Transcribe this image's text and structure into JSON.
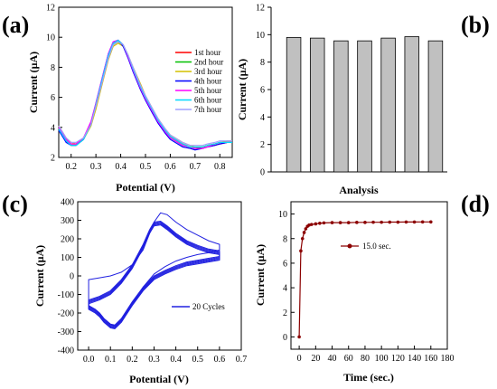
{
  "chart_data": [
    {
      "panel": "(a)",
      "type": "line",
      "xlabel": "Potential (V)",
      "ylabel": "Current (µA)",
      "xlim": [
        0.15,
        0.85
      ],
      "ylim": [
        2,
        12
      ],
      "xticks": [
        "0.2",
        "0.3",
        "0.4",
        "0.5",
        "0.6",
        "0.7",
        "0.8"
      ],
      "yticks": [
        "2",
        "4",
        "6",
        "8",
        "10",
        "12"
      ],
      "legend_position": "right",
      "series": [
        {
          "name": "1st hour",
          "color": "#ff0000",
          "x": [
            0.15,
            0.18,
            0.2,
            0.22,
            0.25,
            0.28,
            0.3,
            0.33,
            0.35,
            0.37,
            0.39,
            0.41,
            0.43,
            0.45,
            0.48,
            0.5,
            0.53,
            0.55,
            0.58,
            0.6,
            0.63,
            0.65,
            0.68,
            0.7,
            0.73,
            0.75,
            0.78,
            0.8,
            0.83,
            0.85
          ],
          "y": [
            4.0,
            3.2,
            2.9,
            2.9,
            3.3,
            4.3,
            5.5,
            7.5,
            8.8,
            9.6,
            9.8,
            9.5,
            8.8,
            7.9,
            6.7,
            6.0,
            5.1,
            4.5,
            3.8,
            3.4,
            3.1,
            2.9,
            2.7,
            2.6,
            2.6,
            2.7,
            2.8,
            2.9,
            3.0,
            3.0
          ]
        },
        {
          "name": "2nd hour",
          "color": "#00c000",
          "x": [
            0.15,
            0.18,
            0.2,
            0.22,
            0.25,
            0.28,
            0.3,
            0.33,
            0.35,
            0.37,
            0.39,
            0.41,
            0.43,
            0.45,
            0.48,
            0.5,
            0.53,
            0.55,
            0.58,
            0.6,
            0.63,
            0.65,
            0.68,
            0.7,
            0.73,
            0.75,
            0.78,
            0.8,
            0.83,
            0.85
          ],
          "y": [
            3.9,
            3.1,
            2.8,
            2.8,
            3.2,
            4.2,
            5.4,
            7.4,
            8.7,
            9.5,
            9.7,
            9.4,
            8.7,
            7.8,
            6.6,
            5.9,
            5.0,
            4.4,
            3.7,
            3.3,
            3.0,
            2.8,
            2.7,
            2.6,
            2.7,
            2.8,
            2.9,
            3.0,
            3.0,
            3.0
          ]
        },
        {
          "name": "3rd hour",
          "color": "#d4c000",
          "x": [
            0.15,
            0.18,
            0.2,
            0.22,
            0.25,
            0.28,
            0.3,
            0.33,
            0.35,
            0.37,
            0.39,
            0.41,
            0.43,
            0.45,
            0.48,
            0.5,
            0.53,
            0.55,
            0.58,
            0.6,
            0.63,
            0.65,
            0.68,
            0.7,
            0.73,
            0.75,
            0.78,
            0.8,
            0.83,
            0.85
          ],
          "y": [
            4.1,
            3.3,
            3.0,
            2.9,
            3.2,
            4.1,
            5.2,
            7.2,
            8.5,
            9.4,
            9.6,
            9.4,
            8.8,
            8.0,
            6.9,
            6.1,
            5.2,
            4.6,
            3.9,
            3.5,
            3.2,
            3.0,
            2.8,
            2.7,
            2.7,
            2.8,
            2.9,
            3.0,
            3.1,
            3.1
          ]
        },
        {
          "name": "4th hour",
          "color": "#0000ff",
          "x": [
            0.15,
            0.18,
            0.2,
            0.22,
            0.25,
            0.28,
            0.3,
            0.33,
            0.35,
            0.37,
            0.39,
            0.41,
            0.43,
            0.45,
            0.48,
            0.5,
            0.53,
            0.55,
            0.58,
            0.6,
            0.63,
            0.65,
            0.68,
            0.7,
            0.73,
            0.75,
            0.78,
            0.8,
            0.83,
            0.85
          ],
          "y": [
            3.8,
            3.0,
            2.8,
            2.8,
            3.2,
            4.3,
            5.6,
            7.6,
            8.9,
            9.7,
            9.8,
            9.4,
            8.6,
            7.7,
            6.5,
            5.8,
            4.9,
            4.3,
            3.6,
            3.2,
            2.9,
            2.7,
            2.6,
            2.5,
            2.6,
            2.7,
            2.8,
            2.9,
            3.0,
            3.0
          ]
        },
        {
          "name": "5th hour",
          "color": "#ff00ff",
          "x": [
            0.15,
            0.18,
            0.2,
            0.22,
            0.25,
            0.28,
            0.3,
            0.33,
            0.35,
            0.37,
            0.39,
            0.41,
            0.43,
            0.45,
            0.48,
            0.5,
            0.53,
            0.55,
            0.58,
            0.6,
            0.63,
            0.65,
            0.68,
            0.7,
            0.73,
            0.75,
            0.78,
            0.8,
            0.83,
            0.85
          ],
          "y": [
            4.0,
            3.2,
            2.9,
            2.9,
            3.3,
            4.4,
            5.6,
            7.6,
            8.9,
            9.7,
            9.8,
            9.5,
            8.7,
            7.8,
            6.6,
            5.9,
            5.0,
            4.4,
            3.7,
            3.3,
            3.0,
            2.8,
            2.7,
            2.6,
            2.6,
            2.7,
            2.9,
            3.0,
            3.0,
            3.0
          ]
        },
        {
          "name": "6th hour",
          "color": "#00d8ff",
          "x": [
            0.15,
            0.18,
            0.2,
            0.22,
            0.25,
            0.28,
            0.3,
            0.33,
            0.35,
            0.37,
            0.39,
            0.41,
            0.43,
            0.45,
            0.48,
            0.5,
            0.53,
            0.55,
            0.58,
            0.6,
            0.63,
            0.65,
            0.68,
            0.7,
            0.73,
            0.75,
            0.78,
            0.8,
            0.83,
            0.85
          ],
          "y": [
            3.9,
            3.1,
            2.8,
            2.8,
            3.2,
            4.2,
            5.5,
            7.5,
            8.8,
            9.6,
            9.8,
            9.5,
            8.8,
            7.9,
            6.7,
            6.0,
            5.1,
            4.5,
            3.8,
            3.4,
            3.1,
            2.9,
            2.7,
            2.7,
            2.7,
            2.8,
            2.9,
            3.0,
            3.0,
            3.0
          ]
        },
        {
          "name": "7th hour",
          "color": "#a0a0ff",
          "x": [
            0.15,
            0.18,
            0.2,
            0.22,
            0.25,
            0.28,
            0.3,
            0.33,
            0.35,
            0.37,
            0.39,
            0.41,
            0.43,
            0.45,
            0.48,
            0.5,
            0.53,
            0.55,
            0.58,
            0.6,
            0.63,
            0.65,
            0.68,
            0.7,
            0.73,
            0.75,
            0.78,
            0.8,
            0.83,
            0.85
          ],
          "y": [
            4.1,
            3.3,
            3.0,
            3.0,
            3.3,
            4.2,
            5.4,
            7.3,
            8.6,
            9.5,
            9.7,
            9.5,
            8.8,
            8.0,
            6.8,
            6.1,
            5.2,
            4.6,
            3.9,
            3.5,
            3.2,
            3.0,
            2.8,
            2.8,
            2.8,
            2.9,
            3.0,
            3.1,
            3.1,
            3.1
          ]
        }
      ]
    },
    {
      "panel": "(b)",
      "type": "bar",
      "xlabel": "Analysis",
      "ylabel": "Current (µA)",
      "ylim": [
        0,
        12
      ],
      "yticks": [
        "0",
        "2",
        "4",
        "6",
        "8",
        "10",
        "12"
      ],
      "bar_color": "#c0c0c0",
      "values": [
        9.8,
        9.75,
        9.55,
        9.55,
        9.75,
        9.85,
        9.55
      ]
    },
    {
      "panel": "(c)",
      "type": "line",
      "xlabel": "Potential (V)",
      "ylabel": "Current (µA)",
      "xlim": [
        -0.05,
        0.7
      ],
      "ylim": [
        -400,
        400
      ],
      "xticks": [
        "0.0",
        "0.1",
        "0.2",
        "0.3",
        "0.4",
        "0.5",
        "0.6",
        "0.7"
      ],
      "yticks": [
        "-400",
        "-300",
        "-200",
        "-100",
        "0",
        "100",
        "200",
        "300",
        "400"
      ],
      "legend_position": "bottom-right",
      "series": [
        {
          "name": "20 Cycles",
          "color": "#2020e0",
          "first_cycle": {
            "x": [
              0.0,
              0.05,
              0.1,
              0.15,
              0.2,
              0.25,
              0.28,
              0.3,
              0.33,
              0.36,
              0.4,
              0.45,
              0.5,
              0.55,
              0.6,
              0.6,
              0.55,
              0.5,
              0.45,
              0.4,
              0.35,
              0.3,
              0.25,
              0.2,
              0.15,
              0.12,
              0.1,
              0.07,
              0.05,
              0.03,
              0.0
            ],
            "y": [
              -20,
              -10,
              0,
              20,
              60,
              140,
              230,
              290,
              340,
              330,
              290,
              250,
              220,
              190,
              170,
              140,
              125,
              115,
              100,
              80,
              50,
              10,
              -60,
              -150,
              -240,
              -270,
              -260,
              -230,
              -200,
              -180,
              -160
            ]
          },
          "steady_cycle": {
            "x": [
              0.0,
              0.05,
              0.1,
              0.15,
              0.2,
              0.25,
              0.28,
              0.3,
              0.33,
              0.36,
              0.4,
              0.45,
              0.5,
              0.55,
              0.6,
              0.6,
              0.55,
              0.5,
              0.45,
              0.4,
              0.35,
              0.3,
              0.25,
              0.2,
              0.15,
              0.12,
              0.1,
              0.07,
              0.05,
              0.03,
              0.0
            ],
            "y": [
              -150,
              -130,
              -100,
              -40,
              40,
              150,
              230,
              270,
              275,
              250,
              210,
              170,
              145,
              125,
              115,
              105,
              95,
              85,
              75,
              55,
              30,
              0,
              -60,
              -140,
              -230,
              -265,
              -260,
              -230,
              -200,
              -180,
              -160
            ]
          },
          "cycles": 20
        }
      ]
    },
    {
      "panel": "(d)",
      "type": "line",
      "xlabel": "Time (sec.)",
      "ylabel": "Current (µA)",
      "xlim": [
        -10,
        180
      ],
      "ylim": [
        -1,
        11
      ],
      "xticks": [
        "0",
        "20",
        "40",
        "60",
        "80",
        "100",
        "120",
        "140",
        "160",
        "180"
      ],
      "yticks": [
        "0",
        "2",
        "4",
        "6",
        "8",
        "10"
      ],
      "legend_position": "center",
      "series": [
        {
          "name": "15.0 sec.",
          "color": "#8b0000",
          "x": [
            0,
            2,
            4,
            6,
            8,
            10,
            12,
            15,
            20,
            25,
            30,
            40,
            50,
            60,
            70,
            80,
            90,
            100,
            110,
            120,
            130,
            140,
            150,
            160
          ],
          "y": [
            0,
            7.0,
            8.0,
            8.5,
            8.8,
            9.0,
            9.1,
            9.15,
            9.2,
            9.25,
            9.28,
            9.3,
            9.3,
            9.3,
            9.32,
            9.32,
            9.33,
            9.33,
            9.34,
            9.34,
            9.35,
            9.35,
            9.36,
            9.36
          ]
        }
      ]
    }
  ]
}
